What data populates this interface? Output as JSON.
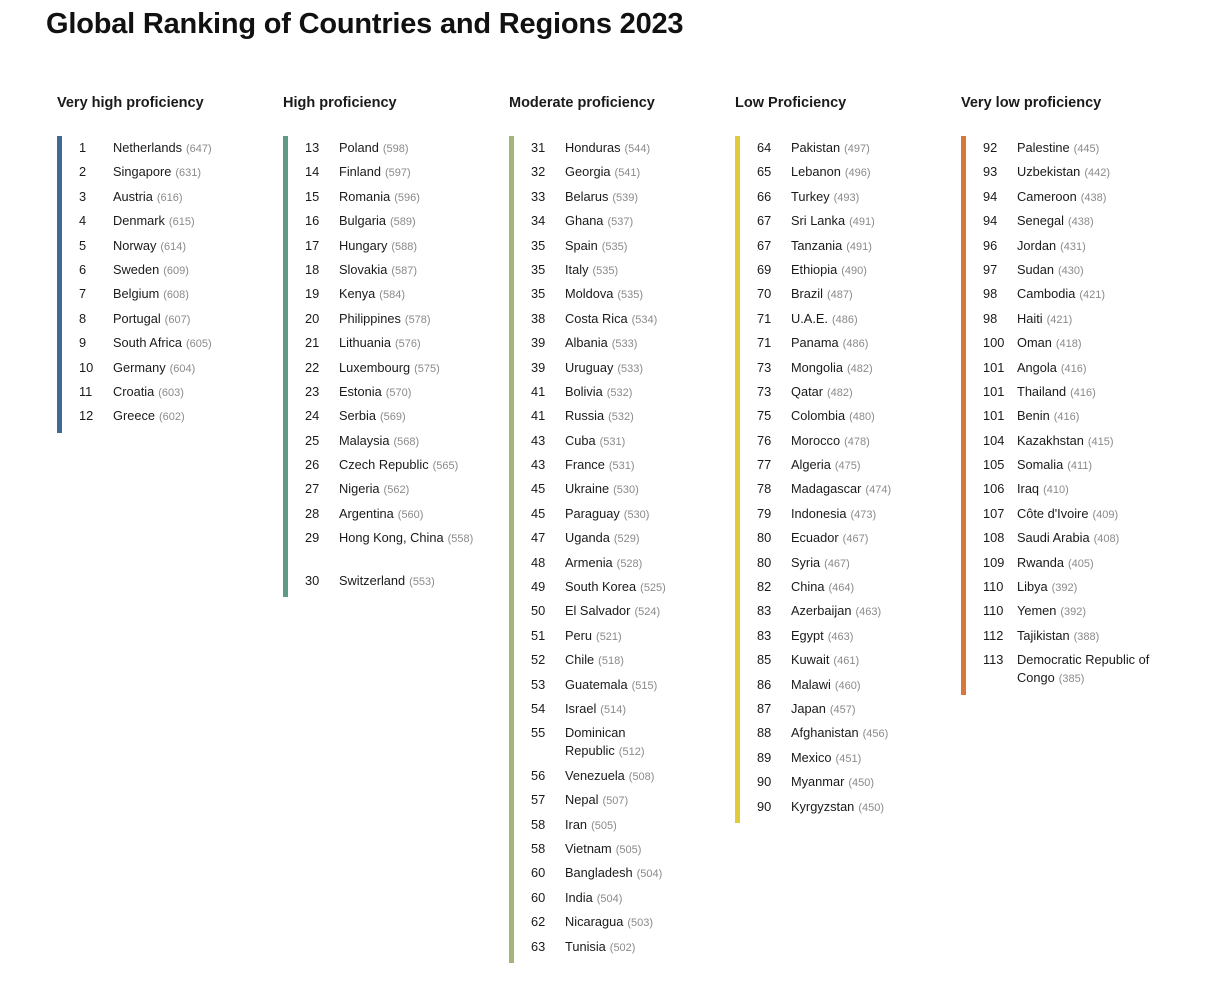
{
  "title": "Global Ranking of Countries and Regions 2023",
  "colors": {
    "very_high": "#3e6a93",
    "high": "#5d9a88",
    "moderate": "#a4b57a",
    "low": "#e2cb3a",
    "very_low": "#d9763a"
  },
  "columns": [
    {
      "title": "Very high proficiency",
      "color": "#3e6a93",
      "entries": [
        {
          "rank": "1",
          "name": "Netherlands",
          "score": "(647)"
        },
        {
          "rank": "2",
          "name": "Singapore",
          "score": "(631)"
        },
        {
          "rank": "3",
          "name": "Austria",
          "score": "(616)"
        },
        {
          "rank": "4",
          "name": "Denmark",
          "score": "(615)"
        },
        {
          "rank": "5",
          "name": "Norway",
          "score": "(614)"
        },
        {
          "rank": "6",
          "name": "Sweden",
          "score": "(609)"
        },
        {
          "rank": "7",
          "name": "Belgium",
          "score": "(608)"
        },
        {
          "rank": "8",
          "name": "Portugal",
          "score": "(607)"
        },
        {
          "rank": "9",
          "name": "South Africa",
          "score": "(605)"
        },
        {
          "rank": "10",
          "name": "Germany",
          "score": "(604)"
        },
        {
          "rank": "11",
          "name": "Croatia",
          "score": "(603)"
        },
        {
          "rank": "12",
          "name": "Greece",
          "score": "(602)"
        }
      ]
    },
    {
      "title": "High proficiency",
      "color": "#5d9a88",
      "entries": [
        {
          "rank": "13",
          "name": "Poland",
          "score": "(598)"
        },
        {
          "rank": "14",
          "name": "Finland",
          "score": "(597)"
        },
        {
          "rank": "15",
          "name": "Romania",
          "score": "(596)"
        },
        {
          "rank": "16",
          "name": "Bulgaria",
          "score": "(589)"
        },
        {
          "rank": "17",
          "name": "Hungary",
          "score": "(588)"
        },
        {
          "rank": "18",
          "name": "Slovakia",
          "score": "(587)"
        },
        {
          "rank": "19",
          "name": "Kenya",
          "score": "(584)"
        },
        {
          "rank": "20",
          "name": "Philippines",
          "score": "(578)"
        },
        {
          "rank": "21",
          "name": "Lithuania",
          "score": "(576)"
        },
        {
          "rank": "22",
          "name": "Luxembourg",
          "score": "(575)"
        },
        {
          "rank": "23",
          "name": "Estonia",
          "score": "(570)"
        },
        {
          "rank": "24",
          "name": "Serbia",
          "score": "(569)"
        },
        {
          "rank": "25",
          "name": "Malaysia",
          "score": "(568)"
        },
        {
          "rank": "26",
          "name": "Czech Republic",
          "score": "(565)"
        },
        {
          "rank": "27",
          "name": "Nigeria",
          "score": "(562)"
        },
        {
          "rank": "28",
          "name": "Argentina",
          "score": "(560)"
        },
        {
          "rank": "29",
          "name": "Hong Kong, China",
          "score": "(558)",
          "tall": true
        },
        {
          "rank": "30",
          "name": "Switzerland",
          "score": "(553)"
        }
      ]
    },
    {
      "title": "Moderate proficiency",
      "color": "#a4b57a",
      "entries": [
        {
          "rank": "31",
          "name": "Honduras",
          "score": "(544)"
        },
        {
          "rank": "32",
          "name": "Georgia",
          "score": "(541)"
        },
        {
          "rank": "33",
          "name": "Belarus",
          "score": "(539)"
        },
        {
          "rank": "34",
          "name": "Ghana",
          "score": "(537)"
        },
        {
          "rank": "35",
          "name": "Spain",
          "score": "(535)"
        },
        {
          "rank": "35",
          "name": "Italy",
          "score": "(535)"
        },
        {
          "rank": "35",
          "name": "Moldova",
          "score": "(535)"
        },
        {
          "rank": "38",
          "name": "Costa Rica",
          "score": "(534)"
        },
        {
          "rank": "39",
          "name": "Albania",
          "score": "(533)"
        },
        {
          "rank": "39",
          "name": "Uruguay",
          "score": "(533)"
        },
        {
          "rank": "41",
          "name": "Bolivia",
          "score": "(532)"
        },
        {
          "rank": "41",
          "name": "Russia",
          "score": "(532)"
        },
        {
          "rank": "43",
          "name": "Cuba",
          "score": "(531)"
        },
        {
          "rank": "43",
          "name": "France",
          "score": "(531)"
        },
        {
          "rank": "45",
          "name": "Ukraine",
          "score": "(530)"
        },
        {
          "rank": "45",
          "name": "Paraguay",
          "score": "(530)"
        },
        {
          "rank": "47",
          "name": "Uganda",
          "score": "(529)"
        },
        {
          "rank": "48",
          "name": "Armenia",
          "score": "(528)"
        },
        {
          "rank": "49",
          "name": "South Korea",
          "score": "(525)"
        },
        {
          "rank": "50",
          "name": "El Salvador",
          "score": "(524)"
        },
        {
          "rank": "51",
          "name": "Peru",
          "score": "(521)"
        },
        {
          "rank": "52",
          "name": "Chile",
          "score": "(518)"
        },
        {
          "rank": "53",
          "name": "Guatemala",
          "score": "(515)"
        },
        {
          "rank": "54",
          "name": "Israel",
          "score": "(514)"
        },
        {
          "rank": "55",
          "name": "Dominican Republic",
          "score": "(512)",
          "tall": true
        },
        {
          "rank": "56",
          "name": "Venezuela",
          "score": "(508)"
        },
        {
          "rank": "57",
          "name": "Nepal",
          "score": "(507)"
        },
        {
          "rank": "58",
          "name": "Iran",
          "score": "(505)"
        },
        {
          "rank": "58",
          "name": "Vietnam",
          "score": "(505)"
        },
        {
          "rank": "60",
          "name": "Bangladesh",
          "score": "(504)"
        },
        {
          "rank": "60",
          "name": "India",
          "score": "(504)"
        },
        {
          "rank": "62",
          "name": "Nicaragua",
          "score": "(503)"
        },
        {
          "rank": "63",
          "name": "Tunisia",
          "score": "(502)"
        }
      ]
    },
    {
      "title": "Low Proficiency",
      "color": "#e2cb3a",
      "entries": [
        {
          "rank": "64",
          "name": "Pakistan",
          "score": "(497)"
        },
        {
          "rank": "65",
          "name": "Lebanon",
          "score": "(496)"
        },
        {
          "rank": "66",
          "name": "Turkey",
          "score": "(493)"
        },
        {
          "rank": "67",
          "name": "Sri Lanka",
          "score": "(491)"
        },
        {
          "rank": "67",
          "name": "Tanzania",
          "score": "(491)"
        },
        {
          "rank": "69",
          "name": "Ethiopia",
          "score": "(490)"
        },
        {
          "rank": "70",
          "name": "Brazil",
          "score": "(487)"
        },
        {
          "rank": "71",
          "name": "U.A.E.",
          "score": "(486)"
        },
        {
          "rank": "71",
          "name": "Panama",
          "score": "(486)"
        },
        {
          "rank": "73",
          "name": "Mongolia",
          "score": "(482)"
        },
        {
          "rank": "73",
          "name": "Qatar",
          "score": "(482)"
        },
        {
          "rank": "75",
          "name": "Colombia",
          "score": "(480)"
        },
        {
          "rank": "76",
          "name": "Morocco",
          "score": "(478)"
        },
        {
          "rank": "77",
          "name": "Algeria",
          "score": "(475)"
        },
        {
          "rank": "78",
          "name": "Madagascar",
          "score": "(474)"
        },
        {
          "rank": "79",
          "name": "Indonesia",
          "score": "(473)"
        },
        {
          "rank": "80",
          "name": "Ecuador",
          "score": "(467)"
        },
        {
          "rank": "80",
          "name": "Syria",
          "score": "(467)"
        },
        {
          "rank": "82",
          "name": "China",
          "score": "(464)"
        },
        {
          "rank": "83",
          "name": "Azerbaijan",
          "score": "(463)"
        },
        {
          "rank": "83",
          "name": "Egypt",
          "score": "(463)"
        },
        {
          "rank": "85",
          "name": "Kuwait",
          "score": "(461)"
        },
        {
          "rank": "86",
          "name": "Malawi",
          "score": "(460)"
        },
        {
          "rank": "87",
          "name": "Japan",
          "score": "(457)"
        },
        {
          "rank": "88",
          "name": "Afghanistan",
          "score": "(456)"
        },
        {
          "rank": "89",
          "name": "Mexico",
          "score": "(451)"
        },
        {
          "rank": "90",
          "name": "Myanmar",
          "score": "(450)"
        },
        {
          "rank": "90",
          "name": "Kyrgyzstan",
          "score": "(450)"
        }
      ]
    },
    {
      "title": "Very low proficiency",
      "color": "#d9763a",
      "entries": [
        {
          "rank": "92",
          "name": "Palestine",
          "score": "(445)"
        },
        {
          "rank": "93",
          "name": "Uzbekistan",
          "score": "(442)"
        },
        {
          "rank": "94",
          "name": "Cameroon",
          "score": "(438)"
        },
        {
          "rank": "94",
          "name": "Senegal",
          "score": "(438)"
        },
        {
          "rank": "96",
          "name": "Jordan",
          "score": "(431)"
        },
        {
          "rank": "97",
          "name": "Sudan",
          "score": "(430)"
        },
        {
          "rank": "98",
          "name": "Cambodia",
          "score": "(421)"
        },
        {
          "rank": "98",
          "name": "Haiti",
          "score": "(421)"
        },
        {
          "rank": "100",
          "name": "Oman",
          "score": "(418)"
        },
        {
          "rank": "101",
          "name": "Angola",
          "score": "(416)"
        },
        {
          "rank": "101",
          "name": "Thailand",
          "score": "(416)"
        },
        {
          "rank": "101",
          "name": "Benin",
          "score": "(416)"
        },
        {
          "rank": "104",
          "name": "Kazakhstan",
          "score": "(415)"
        },
        {
          "rank": "105",
          "name": "Somalia",
          "score": "(411)"
        },
        {
          "rank": "106",
          "name": "Iraq",
          "score": "(410)"
        },
        {
          "rank": "107",
          "name": "Côte d'Ivoire",
          "score": "(409)"
        },
        {
          "rank": "108",
          "name": "Saudi Arabia",
          "score": "(408)"
        },
        {
          "rank": "109",
          "name": "Rwanda",
          "score": "(405)"
        },
        {
          "rank": "110",
          "name": "Libya",
          "score": "(392)"
        },
        {
          "rank": "110",
          "name": "Yemen",
          "score": "(392)"
        },
        {
          "rank": "112",
          "name": "Tajikistan",
          "score": "(388)"
        },
        {
          "rank": "113",
          "name": "Democratic Republic of Congo",
          "score": "(385)",
          "tall": true
        }
      ]
    }
  ]
}
